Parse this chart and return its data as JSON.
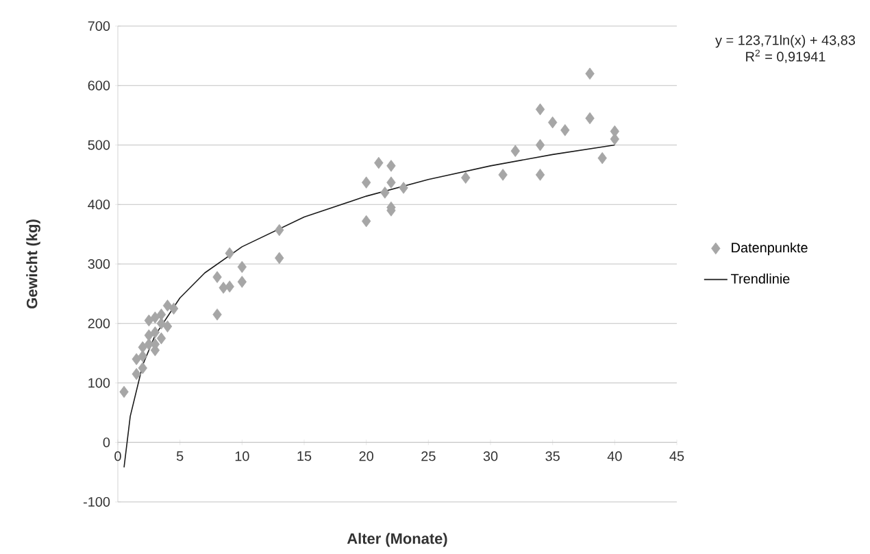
{
  "chart_data": {
    "type": "scatter",
    "xlabel": "Alter (Monate)",
    "ylabel": "Gewicht (kg)",
    "annotations": [
      "y = 123,71ln(x) + 43,83",
      "R$^{2}$ = 0,91941"
    ],
    "xlim": [
      0,
      45
    ],
    "xticks": [
      0,
      5,
      10,
      15,
      20,
      25,
      30,
      35,
      40,
      45
    ],
    "ylim": [
      -100,
      700
    ],
    "yticks": [
      -100,
      0,
      100,
      200,
      300,
      400,
      500,
      600,
      700
    ],
    "grid": "y",
    "legend": "right",
    "series": [
      {
        "name": "Datenpunkte",
        "marker": "diamond",
        "color": "#a6a6a6",
        "x": [
          0.5,
          1.5,
          1.5,
          2,
          2,
          2,
          2.5,
          2.5,
          2.5,
          3,
          3,
          3,
          3,
          3.5,
          3.5,
          3.5,
          4,
          4,
          4.5,
          8,
          8,
          8.5,
          9,
          9,
          10,
          10,
          13,
          13,
          20,
          20,
          21,
          21.5,
          22,
          22,
          22,
          22,
          23,
          28,
          31,
          32,
          34,
          34,
          34,
          35,
          36,
          38,
          38,
          39,
          40,
          40
        ],
        "values": [
          85,
          115,
          140,
          125,
          145,
          160,
          165,
          180,
          205,
          155,
          165,
          185,
          210,
          175,
          200,
          215,
          195,
          230,
          225,
          215,
          278,
          260,
          318,
          262,
          270,
          295,
          357,
          310,
          437,
          372,
          470,
          420,
          465,
          437,
          395,
          390,
          428,
          445,
          450,
          490,
          560,
          500,
          450,
          538,
          525,
          620,
          545,
          478,
          523,
          510
        ]
      },
      {
        "name": "Trendlinie",
        "type": "line",
        "marker": "none",
        "line_style": "solid",
        "color": "#1a1a1a",
        "x": [
          0.5,
          1,
          2,
          3,
          5,
          7,
          10,
          15,
          20,
          25,
          30,
          35,
          40
        ],
        "values": [
          -42,
          44,
          130,
          180,
          243,
          285,
          329,
          379,
          414,
          442,
          465,
          484,
          500
        ]
      }
    ]
  }
}
